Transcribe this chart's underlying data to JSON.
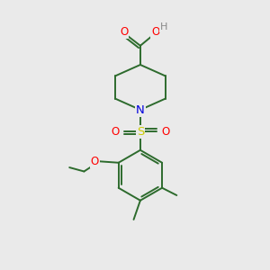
{
  "background_color": "#eaeaea",
  "bond_color": "#2d6b2d",
  "bond_width": 1.4,
  "atom_colors": {
    "O": "#ff0000",
    "N": "#0000dd",
    "S": "#cccc00",
    "C": "#2d6b2d",
    "H": "#888888"
  },
  "font_size": 8.5,
  "fig_width": 3.0,
  "fig_height": 3.0,
  "dpi": 100,
  "xlim": [
    0,
    10
  ],
  "ylim": [
    0,
    10
  ]
}
